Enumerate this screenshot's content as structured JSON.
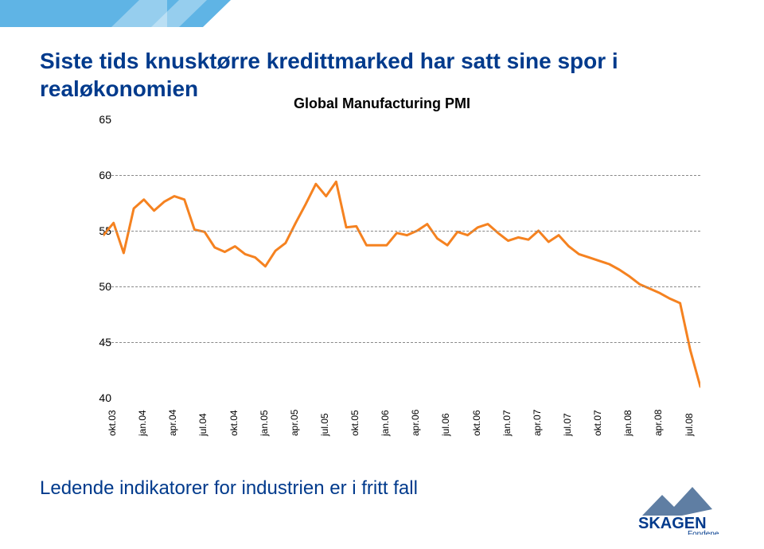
{
  "title": "Siste tids knusktørre kredittmarked har satt sine spor i realøkonomien",
  "subtitle": "Ledende indikatorer for industrien er i fritt fall",
  "title_fontsize": 28,
  "subtitle_fontsize": 24,
  "title_color": "#003a8c",
  "banner_color": "#5fb4e5",
  "chart": {
    "title": "Global Manufacturing PMI",
    "title_fontsize": 18,
    "title_weight": 700,
    "line_color": "#f58220",
    "line_width": 3,
    "grid_color": "#888888",
    "background_color": "#ffffff",
    "ylim": [
      40,
      65
    ],
    "ytick_step": 5,
    "y_ticks": [
      40,
      45,
      50,
      55,
      60,
      65
    ],
    "x_labels": [
      "okt.03",
      "jan.04",
      "apr.04",
      "jul.04",
      "okt.04",
      "jan.05",
      "apr.05",
      "jul.05",
      "okt.05",
      "jan.06",
      "apr.06",
      "jul.06",
      "okt.06",
      "jan.07",
      "apr.07",
      "jul.07",
      "okt.07",
      "jan.08",
      "apr.08",
      "jul.08"
    ],
    "series": [
      54.6,
      55.7,
      53.0,
      57.0,
      57.8,
      56.8,
      57.6,
      58.1,
      57.8,
      55.1,
      54.9,
      53.5,
      53.1,
      53.6,
      52.9,
      52.6,
      51.8,
      53.2,
      53.9,
      55.7,
      57.4,
      59.2,
      58.1,
      59.4,
      55.3,
      55.4,
      53.7,
      53.7,
      53.7,
      54.8,
      54.6,
      55.0,
      55.6,
      54.3,
      53.7,
      54.9,
      54.6,
      55.3,
      55.6,
      54.8,
      54.1,
      54.4,
      54.2,
      55.0,
      54.0,
      54.6,
      53.6,
      52.9,
      52.6,
      52.3,
      52.0,
      51.5,
      50.9,
      50.2,
      49.8,
      49.4,
      48.9,
      48.5,
      44.3,
      41.0
    ]
  },
  "logo": {
    "primary": "SKAGEN",
    "secondary": "Fondene",
    "color": "#003a8c",
    "mountain_fill": "#5f7ea3"
  }
}
